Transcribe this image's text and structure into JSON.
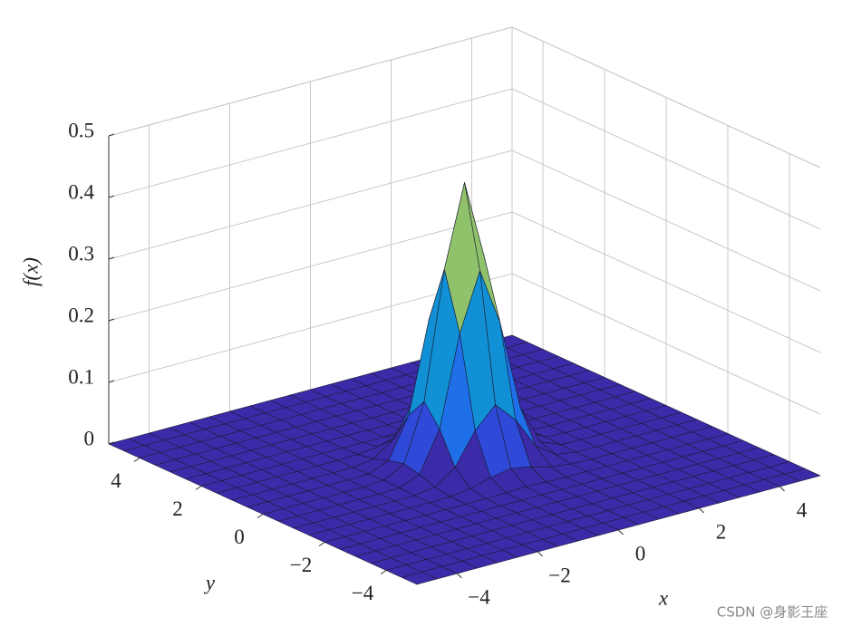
{
  "chart_data": {
    "type": "surface",
    "xlabel": "x",
    "ylabel": "y",
    "zlabel": "f(x)",
    "x": [
      -5,
      -4.5,
      -4,
      -3.5,
      -3,
      -2.5,
      -2,
      -1.5,
      -1,
      -0.5,
      0,
      0.5,
      1,
      1.5,
      2,
      2.5,
      3,
      3.5,
      4,
      4.5,
      5
    ],
    "y": [
      -5,
      -4.5,
      -4,
      -3.5,
      -3,
      -2.5,
      -2,
      -1.5,
      -1,
      -0.5,
      0,
      0.5,
      1,
      1.5,
      2,
      2.5,
      3,
      3.5,
      4,
      4.5,
      5
    ],
    "z": [
      [
        0,
        0,
        0,
        0,
        0,
        0,
        0,
        0,
        0,
        0,
        0,
        0,
        0,
        0,
        0,
        0,
        0,
        0,
        0,
        0,
        0
      ],
      [
        0,
        0,
        0,
        0,
        0,
        0,
        0,
        0,
        0,
        0,
        0,
        0,
        0,
        0,
        0,
        0,
        0,
        0,
        0,
        0,
        0
      ],
      [
        0,
        0,
        0,
        0,
        0,
        0,
        0,
        0,
        0,
        0,
        0,
        0,
        0,
        0,
        0,
        0,
        0,
        0,
        0,
        0,
        0
      ],
      [
        0,
        0,
        0,
        0,
        0,
        0,
        0,
        0,
        0,
        0,
        0,
        0,
        0,
        0,
        0,
        0,
        0,
        0,
        0,
        0,
        0
      ],
      [
        0,
        0,
        0,
        0,
        0,
        0,
        0,
        0,
        0,
        0,
        0,
        0,
        0,
        0,
        0,
        0,
        0,
        0,
        0,
        0,
        0
      ],
      [
        0,
        0,
        0,
        0,
        0,
        0,
        0,
        0,
        0,
        0,
        0,
        0,
        0,
        0,
        0,
        0,
        0,
        0,
        0,
        0,
        0
      ],
      [
        0,
        0,
        0,
        0,
        0,
        0,
        0,
        0,
        0,
        0.001,
        0.002,
        0.001,
        0,
        0,
        0,
        0,
        0,
        0,
        0,
        0,
        0
      ],
      [
        0,
        0,
        0,
        0,
        0,
        0,
        0,
        0.001,
        0.005,
        0.014,
        0.02,
        0.014,
        0.005,
        0.001,
        0,
        0,
        0,
        0,
        0,
        0,
        0
      ],
      [
        0,
        0,
        0,
        0,
        0,
        0,
        0,
        0.005,
        0.028,
        0.079,
        0.112,
        0.079,
        0.028,
        0.005,
        0,
        0,
        0,
        0,
        0,
        0,
        0
      ],
      [
        0,
        0,
        0,
        0,
        0,
        0,
        0.001,
        0.014,
        0.079,
        0.225,
        0.318,
        0.225,
        0.079,
        0.014,
        0.001,
        0,
        0,
        0,
        0,
        0,
        0
      ],
      [
        0,
        0,
        0,
        0,
        0,
        0,
        0.002,
        0.02,
        0.112,
        0.318,
        0.45,
        0.318,
        0.112,
        0.02,
        0.002,
        0,
        0,
        0,
        0,
        0,
        0
      ],
      [
        0,
        0,
        0,
        0,
        0,
        0,
        0.001,
        0.014,
        0.079,
        0.225,
        0.318,
        0.225,
        0.079,
        0.014,
        0.001,
        0,
        0,
        0,
        0,
        0,
        0
      ],
      [
        0,
        0,
        0,
        0,
        0,
        0,
        0,
        0.005,
        0.028,
        0.079,
        0.112,
        0.079,
        0.028,
        0.005,
        0,
        0,
        0,
        0,
        0,
        0,
        0
      ],
      [
        0,
        0,
        0,
        0,
        0,
        0,
        0,
        0.001,
        0.005,
        0.014,
        0.02,
        0.014,
        0.005,
        0.001,
        0,
        0,
        0,
        0,
        0,
        0,
        0
      ],
      [
        0,
        0,
        0,
        0,
        0,
        0,
        0,
        0,
        0,
        0,
        0.001,
        0.002,
        0.001,
        0,
        0,
        0,
        0,
        0,
        0,
        0,
        0
      ],
      [
        0,
        0,
        0,
        0,
        0,
        0,
        0,
        0,
        0,
        0,
        0,
        0,
        0,
        0,
        0,
        0,
        0,
        0,
        0,
        0,
        0
      ],
      [
        0,
        0,
        0,
        0,
        0,
        0,
        0,
        0,
        0,
        0,
        0,
        0,
        0,
        0,
        0,
        0,
        0,
        0,
        0,
        0,
        0
      ],
      [
        0,
        0,
        0,
        0,
        0,
        0,
        0,
        0,
        0,
        0,
        0,
        0,
        0,
        0,
        0,
        0,
        0,
        0,
        0,
        0,
        0
      ],
      [
        0,
        0,
        0,
        0,
        0,
        0,
        0,
        0,
        0,
        0,
        0,
        0,
        0,
        0,
        0,
        0,
        0,
        0,
        0,
        0,
        0
      ],
      [
        0,
        0,
        0,
        0,
        0,
        0,
        0,
        0,
        0,
        0,
        0,
        0,
        0,
        0,
        0,
        0,
        0,
        0,
        0,
        0,
        0
      ],
      [
        0,
        0,
        0,
        0,
        0,
        0,
        0,
        0,
        0,
        0,
        0,
        0,
        0,
        0,
        0,
        0,
        0,
        0,
        0,
        0,
        0
      ]
    ],
    "xlim": [
      -5,
      5
    ],
    "ylim": [
      -5,
      5
    ],
    "zlim": [
      0,
      0.5
    ],
    "xticks": [
      {
        "value": -4,
        "label": "−4"
      },
      {
        "value": -2,
        "label": "−2"
      },
      0,
      2,
      4
    ],
    "yticks": [
      {
        "value": -4,
        "label": "−4"
      },
      {
        "value": -2,
        "label": "−2"
      },
      0,
      2,
      4
    ],
    "zticks": [
      0,
      0.1,
      0.2,
      0.3,
      0.4,
      0.5
    ],
    "grid": true,
    "colormap": [
      "#3b2ba8",
      "#2f4ad8",
      "#1f6fe8",
      "#1190d6",
      "#0aaebf",
      "#3cbb96",
      "#8fc26a",
      "#d8bb45",
      "#f6d83a",
      "#f9f414"
    ]
  },
  "watermark": "CSDN @身影王座"
}
